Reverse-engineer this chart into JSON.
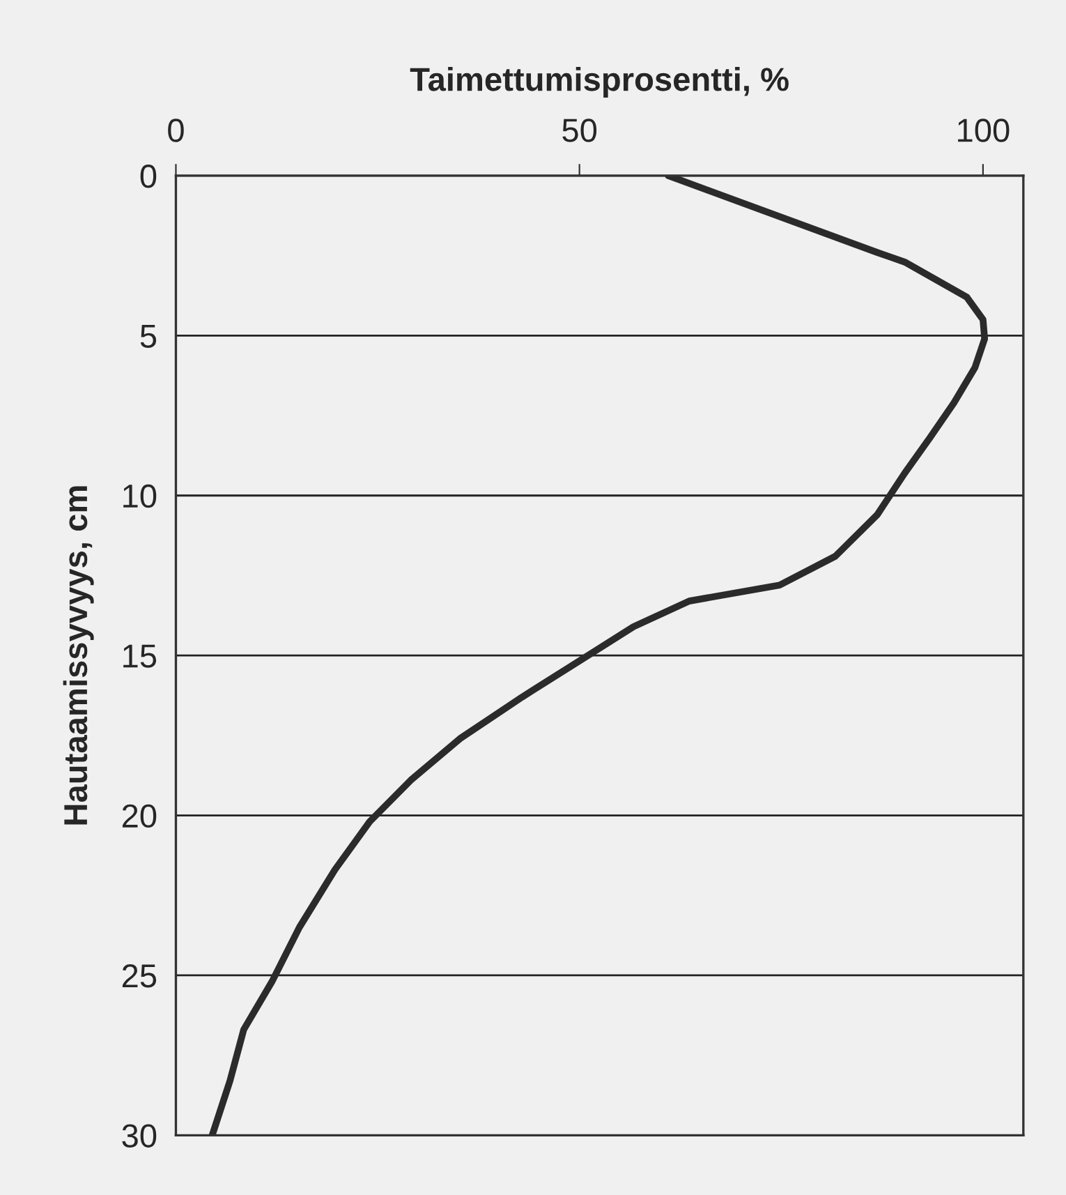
{
  "chart_data": {
    "type": "line",
    "xlabel": "Taimettumisprosentti, %",
    "ylabel": "Hautaamissyvyys, cm",
    "x": [
      61.0,
      86.9,
      90.3,
      98.0,
      100.0,
      100.2,
      99.0,
      96.4,
      93.4,
      90.3,
      86.9,
      81.7,
      74.8,
      63.6,
      56.7,
      49.8,
      42.9,
      35.2,
      29.1,
      24.0,
      19.7,
      15.3,
      11.9,
      8.4,
      6.7,
      4.5
    ],
    "values": [
      0,
      2.4,
      2.7,
      3.8,
      4.5,
      5.1,
      6.0,
      7.1,
      8.2,
      9.3,
      10.6,
      11.9,
      12.8,
      13.3,
      14.1,
      15.2,
      16.3,
      17.6,
      18.9,
      20.2,
      21.7,
      23.5,
      25.2,
      26.7,
      28.3,
      30
    ],
    "color": "#2b2b2b",
    "xlim": [
      0,
      105
    ],
    "xticks": [
      0,
      50,
      100
    ],
    "ylim": [
      30,
      0
    ],
    "yticks": [
      0,
      5,
      10,
      15,
      20,
      25,
      30
    ],
    "grid": "y",
    "marker": "none",
    "line_style": "solid"
  }
}
